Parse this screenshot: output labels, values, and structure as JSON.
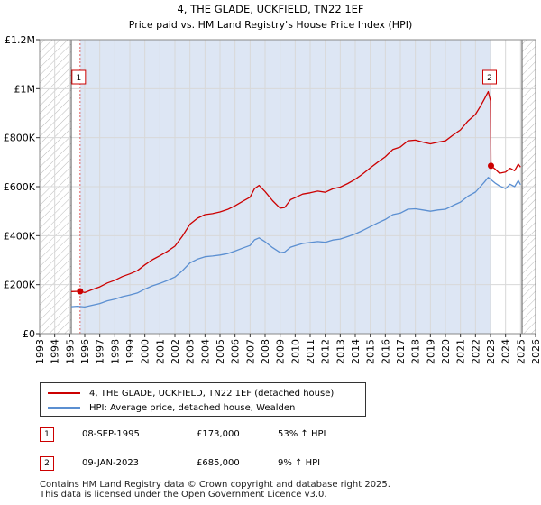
{
  "chart_data": {
    "type": "line",
    "title": "4, THE GLADE, UCKFIELD, TN22 1EF",
    "subtitle": "Price paid vs. HM Land Registry's House Price Index (HPI)",
    "xlim": [
      1993,
      2026
    ],
    "ylim": [
      0,
      1200000
    ],
    "y_ticks": [
      0,
      200000,
      400000,
      600000,
      800000,
      1000000,
      1200000
    ],
    "y_tick_labels": [
      "£0",
      "£200K",
      "£400K",
      "£600K",
      "£800K",
      "£1M",
      "£1.2M"
    ],
    "x_ticks": [
      1993,
      1994,
      1995,
      1996,
      1997,
      1998,
      1999,
      2000,
      2001,
      2002,
      2003,
      2004,
      2005,
      2006,
      2007,
      2008,
      2009,
      2010,
      2011,
      2012,
      2013,
      2014,
      2015,
      2016,
      2017,
      2018,
      2019,
      2020,
      2021,
      2022,
      2023,
      2024,
      2025,
      2026
    ],
    "x_tick_labels": [
      "1993",
      "1994",
      "1995",
      "1996",
      "1997",
      "1998",
      "1999",
      "2000",
      "2001",
      "2002",
      "2003",
      "2004",
      "2005",
      "2006",
      "2007",
      "2008",
      "2009",
      "2010",
      "2011",
      "2012",
      "2013",
      "2014",
      "2015",
      "2016",
      "2017",
      "2018",
      "2019",
      "2020",
      "2021",
      "2022",
      "2023",
      "2024",
      "2025",
      "2026"
    ],
    "grid": true,
    "hatched_ranges": [
      [
        1993,
        1995.1
      ],
      [
        2025.1,
        2026
      ]
    ],
    "shaded_ranges": [
      [
        1995.69,
        2023.03
      ]
    ],
    "series": [
      {
        "name": "4, THE GLADE, UCKFIELD, TN22 1EF (detached house)",
        "color": "#cc0000",
        "x": [
          1995.1,
          1995.69,
          1996.0,
          1996.5,
          1997.0,
          1997.5,
          1998.0,
          1998.5,
          1999.0,
          1999.5,
          2000.0,
          2000.5,
          2001.0,
          2001.5,
          2002.0,
          2002.5,
          2003.0,
          2003.5,
          2004.0,
          2004.5,
          2005.0,
          2005.5,
          2006.0,
          2006.5,
          2007.0,
          2007.3,
          2007.6,
          2008.0,
          2008.5,
          2009.0,
          2009.3,
          2009.7,
          2010.0,
          2010.5,
          2011.0,
          2011.5,
          2012.0,
          2012.5,
          2013.0,
          2013.5,
          2014.0,
          2014.5,
          2015.0,
          2015.5,
          2016.0,
          2016.5,
          2017.0,
          2017.5,
          2018.0,
          2018.5,
          2019.0,
          2019.5,
          2020.0,
          2020.5,
          2021.0,
          2021.5,
          2022.0,
          2022.3,
          2022.6,
          2022.85,
          2023.0,
          2023.03,
          2023.3,
          2023.6,
          2024.0,
          2024.3,
          2024.6,
          2024.85,
          2025.0
        ],
        "values": [
          172000,
          173000,
          168000,
          180000,
          191000,
          207000,
          218000,
          233000,
          244000,
          257000,
          281000,
          302000,
          318000,
          336000,
          357000,
          398000,
          447000,
          471000,
          486000,
          490000,
          497000,
          507000,
          522000,
          540000,
          557000,
          592000,
          605000,
          580000,
          543000,
          512000,
          515000,
          547000,
          555000,
          570000,
          575000,
          582000,
          577000,
          591000,
          598000,
          613000,
          630000,
          652000,
          677000,
          700000,
          722000,
          752000,
          762000,
          787000,
          790000,
          782000,
          775000,
          782000,
          787000,
          810000,
          832000,
          868000,
          895000,
          925000,
          958000,
          988000,
          950000,
          685000,
          672000,
          655000,
          660000,
          675000,
          665000,
          692000,
          680000
        ]
      },
      {
        "name": "HPI: Average price, detached house, Wealden",
        "color": "#5b8fd1",
        "x": [
          1995.1,
          1995.5,
          1996.0,
          1996.5,
          1997.0,
          1997.5,
          1998.0,
          1998.5,
          1999.0,
          1999.5,
          2000.0,
          2000.5,
          2001.0,
          2001.5,
          2002.0,
          2002.5,
          2003.0,
          2003.5,
          2004.0,
          2004.5,
          2005.0,
          2005.5,
          2006.0,
          2006.5,
          2007.0,
          2007.3,
          2007.6,
          2008.0,
          2008.5,
          2009.0,
          2009.3,
          2009.7,
          2010.0,
          2010.5,
          2011.0,
          2011.5,
          2012.0,
          2012.5,
          2013.0,
          2013.5,
          2014.0,
          2014.5,
          2015.0,
          2015.5,
          2016.0,
          2016.5,
          2017.0,
          2017.5,
          2018.0,
          2018.5,
          2019.0,
          2019.5,
          2020.0,
          2020.5,
          2021.0,
          2021.5,
          2022.0,
          2022.3,
          2022.6,
          2022.85,
          2023.0,
          2023.3,
          2023.6,
          2024.0,
          2024.3,
          2024.6,
          2024.85,
          2025.0
        ],
        "values": [
          110000,
          112000,
          109000,
          116000,
          123000,
          134000,
          141000,
          151000,
          158000,
          166000,
          182000,
          195000,
          205000,
          217000,
          231000,
          257000,
          289000,
          304000,
          314000,
          317000,
          321000,
          327000,
          337000,
          349000,
          360000,
          383000,
          391000,
          375000,
          351000,
          331000,
          333000,
          353000,
          359000,
          368000,
          372000,
          376000,
          373000,
          382000,
          386000,
          396000,
          407000,
          421000,
          437000,
          452000,
          466000,
          486000,
          492000,
          508000,
          510000,
          505000,
          500000,
          505000,
          508000,
          523000,
          537000,
          561000,
          578000,
          598000,
          619000,
          638000,
          630000,
          615000,
          603000,
          592000,
          610000,
          600000,
          625000,
          608000
        ]
      }
    ],
    "sales": [
      {
        "label": "1",
        "x": 1995.69,
        "value": 173000,
        "date": "08-SEP-1995",
        "price": "£173,000",
        "hpi": "53% ↑ HPI"
      },
      {
        "label": "2",
        "x": 2023.03,
        "value": 685000,
        "date": "09-JAN-2023",
        "price": "£685,000",
        "hpi": "9% ↑ HPI"
      }
    ]
  },
  "legend": {
    "red_label": "4, THE GLADE, UCKFIELD, TN22 1EF (detached house)",
    "blue_label": "HPI: Average price, detached house, Wealden"
  },
  "footer": {
    "line1": "Contains HM Land Registry data © Crown copyright and database right 2025.",
    "line2": "This data is licensed under the Open Government Licence v3.0."
  },
  "colors": {
    "red": "#cc0000",
    "blue": "#5b8fd1",
    "shade": "#dde6f4",
    "grid": "#d8d8d8"
  }
}
